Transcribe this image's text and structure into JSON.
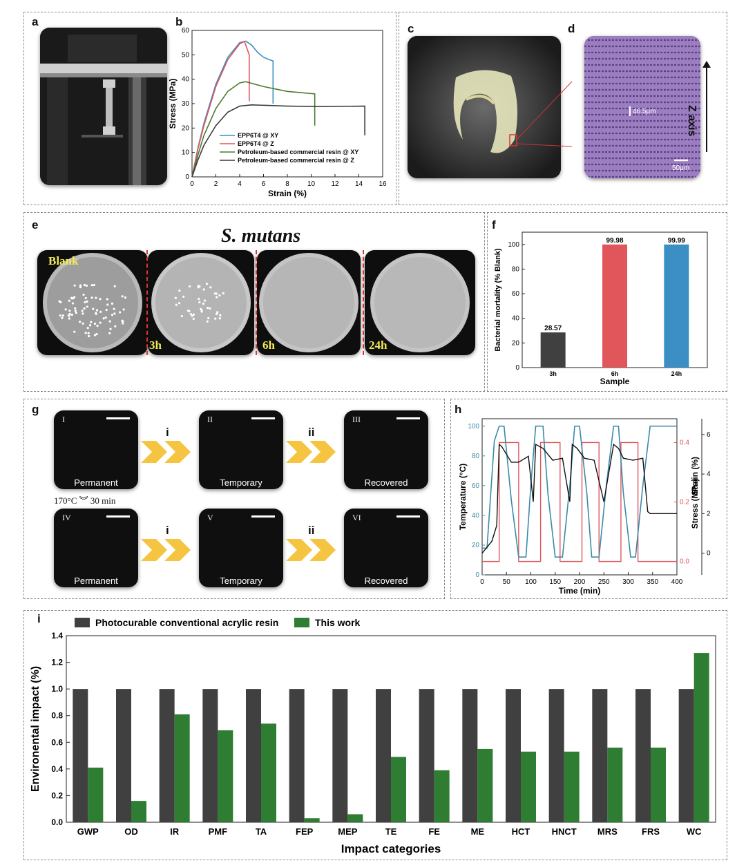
{
  "panels": {
    "a": "a",
    "b": "b",
    "c": "c",
    "d": "d",
    "e": "e",
    "f": "f",
    "g": "g",
    "h": "h",
    "i": "i"
  },
  "panel_d": {
    "measure": "46.5μm",
    "scale": "50μm",
    "axis": "Z axis"
  },
  "panel_e": {
    "title": "S. mutans",
    "dishes": [
      "Blank",
      "3h",
      "6h",
      "24h"
    ]
  },
  "panel_g": {
    "steps": [
      "i",
      "ii"
    ],
    "row1": [
      {
        "roman": "I",
        "caption": "Permanent"
      },
      {
        "roman": "II",
        "caption": "Temporary"
      },
      {
        "roman": "III",
        "caption": "Recovered"
      }
    ],
    "row2": [
      {
        "roman": "IV",
        "caption": "Permanent"
      },
      {
        "roman": "V",
        "caption": "Temporary"
      },
      {
        "roman": "VI",
        "caption": "Recovered"
      }
    ],
    "heat_left": "170°C",
    "heat_right": "30 min"
  },
  "colors": {
    "blue": "#3b8fc4",
    "red": "#e0565b",
    "green": "#4a7a2e",
    "dark": "#3a3a3a",
    "teal": "#3a8aa8",
    "dark_bar": "#404040",
    "green_bar": "#2e7d32",
    "dish_text": "#f2e95a"
  },
  "chart_data": [
    {
      "id": "b",
      "type": "line",
      "xlabel": "Strain (%)",
      "ylabel": "Stress (MPa)",
      "xlim": [
        0,
        16
      ],
      "ylim": [
        0,
        60
      ],
      "xticks": [
        0,
        2,
        4,
        6,
        8,
        10,
        12,
        14,
        16
      ],
      "yticks": [
        0,
        10,
        20,
        30,
        40,
        50,
        60
      ],
      "series": [
        {
          "name": "EPP6T4 @ XY",
          "color": "#3b8fc4",
          "x": [
            0,
            0.5,
            1,
            2,
            3,
            4,
            4.5,
            5,
            5.5,
            6,
            6.5,
            6.8,
            6.8
          ],
          "y": [
            0,
            12,
            22,
            38,
            49,
            55,
            55.6,
            54,
            51,
            49,
            48,
            47.5,
            30
          ]
        },
        {
          "name": "EPP6T4 @ Z",
          "color": "#e0565b",
          "x": [
            0,
            0.5,
            1,
            2,
            3,
            4,
            4.4,
            4.8,
            4.8
          ],
          "y": [
            0,
            11.5,
            21,
            37,
            48,
            54.5,
            55.5,
            50,
            31
          ]
        },
        {
          "name": "Petroleum-based commercial resin @ XY",
          "color": "#4a7a2e",
          "x": [
            0,
            0.5,
            1,
            2,
            3,
            4,
            4.5,
            6,
            8,
            10.3,
            10.3
          ],
          "y": [
            0,
            9,
            17,
            28,
            35,
            38.5,
            39,
            37,
            35,
            34,
            21
          ]
        },
        {
          "name": "Petroleum-based commercial resin @ Z",
          "color": "#3a3a3a",
          "x": [
            0,
            0.5,
            1,
            2,
            3,
            4,
            5,
            8,
            11,
            14.5,
            14.5
          ],
          "y": [
            0,
            7,
            13,
            21,
            26.5,
            29,
            29.5,
            29,
            28.8,
            29,
            17
          ]
        }
      ]
    },
    {
      "id": "f",
      "type": "bar",
      "xlabel": "Sample",
      "ylabel": "Bacterial mortality (% Blank)",
      "ylim": [
        0,
        110
      ],
      "yticks": [
        0,
        20,
        40,
        60,
        80,
        100
      ],
      "categories": [
        "3h",
        "6h",
        "24h"
      ],
      "values": [
        28.57,
        99.98,
        99.99
      ],
      "value_labels": [
        "28.57",
        "99.98",
        "99.99"
      ],
      "colors": [
        "#404040",
        "#e0565b",
        "#3b8fc4"
      ]
    },
    {
      "id": "h",
      "type": "line",
      "xlabel": "Time (min)",
      "ylabel_left": "Temperature (°C)",
      "ylabel_mid": "Stress (MPa)",
      "ylabel_right": "Strain (%)",
      "xlim": [
        0,
        400
      ],
      "xticks": [
        0,
        50,
        100,
        150,
        200,
        250,
        300,
        350,
        400
      ],
      "temp_ticks": [
        0,
        20,
        40,
        60,
        80,
        100
      ],
      "stress_ticks": [
        "0.0",
        "0.2",
        "0.4"
      ],
      "strain_ticks": [
        0,
        2,
        4,
        6
      ],
      "temperature": {
        "x": [
          0,
          10,
          25,
          35,
          45,
          60,
          75,
          90,
          100,
          110,
          125,
          135,
          150,
          165,
          180,
          190,
          200,
          215,
          225,
          240,
          255,
          270,
          280,
          290,
          305,
          315,
          330,
          345,
          360,
          400
        ],
        "y": [
          18,
          18,
          90,
          100,
          100,
          50,
          12,
          12,
          60,
          100,
          100,
          55,
          12,
          12,
          60,
          100,
          100,
          55,
          12,
          12,
          60,
          100,
          100,
          55,
          12,
          12,
          60,
          100,
          100,
          100
        ]
      },
      "stress": {
        "x": [
          0,
          35,
          35,
          75,
          75,
          120,
          120,
          160,
          160,
          205,
          205,
          240,
          240,
          285,
          285,
          320,
          320,
          400
        ],
        "y": [
          0,
          0,
          0.4,
          0.4,
          0,
          0,
          0.4,
          0.4,
          0,
          0,
          0.4,
          0.4,
          0,
          0,
          0.4,
          0.4,
          0,
          0
        ]
      },
      "strain": {
        "x": [
          0,
          10,
          20,
          30,
          35,
          40,
          60,
          75,
          95,
          105,
          110,
          125,
          145,
          165,
          180,
          185,
          195,
          210,
          230,
          250,
          270,
          280,
          290,
          310,
          330,
          340,
          345,
          400
        ],
        "y": [
          0,
          0.3,
          0.6,
          1.4,
          5.5,
          5.4,
          4.6,
          4.6,
          4.9,
          2.6,
          5.5,
          5.3,
          4.7,
          4.8,
          2.6,
          5.5,
          5.3,
          4.8,
          4.7,
          2.6,
          5.5,
          5.3,
          4.8,
          4.7,
          4.8,
          2.1,
          2.0,
          2.0
        ]
      }
    },
    {
      "id": "i",
      "type": "bar",
      "xlabel": "Impact categories",
      "ylabel": "Environental impact (%)",
      "ylim": [
        0,
        1.4
      ],
      "yticks": [
        "0.0",
        "0.2",
        "0.4",
        "0.6",
        "0.8",
        "1.0",
        "1.2",
        "1.4"
      ],
      "categories": [
        "GWP",
        "OD",
        "IR",
        "PMF",
        "TA",
        "FEP",
        "MEP",
        "TE",
        "FE",
        "ME",
        "HCT",
        "HNCT",
        "MRS",
        "FRS",
        "WC"
      ],
      "series": [
        {
          "name": "Photocurable conventional acrylic resin",
          "color": "#404040",
          "values": [
            1,
            1,
            1,
            1,
            1,
            1,
            1,
            1,
            1,
            1,
            1,
            1,
            1,
            1,
            1
          ]
        },
        {
          "name": "This work",
          "color": "#2e7d32",
          "values": [
            0.41,
            0.16,
            0.81,
            0.69,
            0.74,
            0.03,
            0.06,
            0.49,
            0.39,
            0.55,
            0.53,
            0.53,
            0.56,
            0.56,
            1.27
          ]
        }
      ]
    }
  ]
}
